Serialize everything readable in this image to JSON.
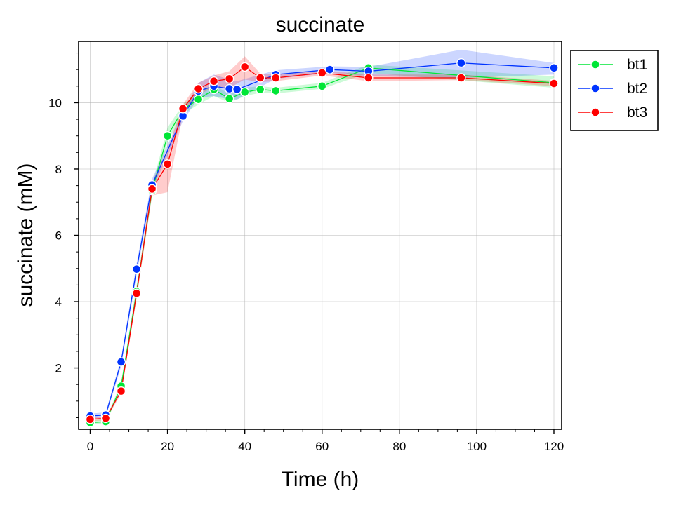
{
  "chart_data": {
    "type": "line",
    "title": "succinate",
    "xlabel": "Time (h)",
    "ylabel": "succinate (mM)",
    "xlim": [
      -3,
      122
    ],
    "ylim": [
      0.15,
      11.85
    ],
    "xticks": [
      0,
      20,
      40,
      60,
      80,
      100,
      120
    ],
    "yticks": [
      2,
      4,
      6,
      8,
      10
    ],
    "xtick_labels": [
      "0",
      "20",
      "40",
      "60",
      "80",
      "100",
      "120"
    ],
    "ytick_labels": [
      "2",
      "4",
      "6",
      "8",
      "10"
    ],
    "grid": true,
    "legend_position": "outside-upper-right",
    "series": [
      {
        "name": "bt1",
        "color": "#00e636",
        "x": [
          0,
          4,
          8,
          12,
          16,
          20,
          24,
          28,
          32,
          36,
          40,
          44,
          48,
          60,
          72,
          120
        ],
        "y": [
          0.35,
          0.38,
          1.45,
          4.3,
          7.35,
          9.0,
          9.8,
          10.1,
          10.4,
          10.12,
          10.32,
          10.4,
          10.36,
          10.5,
          11.05,
          10.6
        ],
        "lower": [
          0.3,
          0.33,
          1.35,
          4.1,
          7.2,
          8.8,
          9.65,
          9.95,
          10.2,
          10.0,
          10.2,
          10.3,
          10.28,
          10.42,
          10.9,
          10.45
        ],
        "upper": [
          0.42,
          0.45,
          1.55,
          4.5,
          7.5,
          9.25,
          9.95,
          10.3,
          10.55,
          10.25,
          10.45,
          10.5,
          10.45,
          10.6,
          11.15,
          10.8
        ]
      },
      {
        "name": "bt2",
        "color": "#0034ff",
        "x": [
          0,
          4,
          8,
          12,
          16,
          24,
          28,
          32,
          36,
          38,
          48,
          62,
          72,
          96,
          120
        ],
        "y": [
          0.55,
          0.58,
          2.18,
          4.98,
          7.52,
          9.6,
          10.35,
          10.5,
          10.42,
          10.4,
          10.85,
          11.0,
          10.95,
          11.2,
          11.05
        ],
        "lower": [
          0.48,
          0.5,
          2.05,
          4.8,
          7.35,
          9.45,
          10.15,
          10.2,
          10.1,
          10.1,
          10.72,
          10.9,
          10.8,
          10.75,
          10.85
        ],
        "upper": [
          0.62,
          0.66,
          2.3,
          5.15,
          7.7,
          9.75,
          10.6,
          10.85,
          10.7,
          10.65,
          10.98,
          11.1,
          11.08,
          11.6,
          11.2
        ]
      },
      {
        "name": "bt3",
        "color": "#ff0000",
        "x": [
          0,
          4,
          8,
          12,
          16,
          20,
          24,
          28,
          32,
          36,
          40,
          44,
          48,
          60,
          72,
          96,
          120
        ],
        "y": [
          0.45,
          0.48,
          1.3,
          4.25,
          7.4,
          8.15,
          9.82,
          10.42,
          10.65,
          10.72,
          11.08,
          10.75,
          10.75,
          10.9,
          10.75,
          10.75,
          10.58
        ],
        "lower": [
          0.4,
          0.42,
          1.22,
          4.1,
          7.2,
          7.3,
          9.65,
          10.25,
          10.45,
          10.45,
          10.7,
          10.62,
          10.65,
          10.82,
          10.65,
          10.68,
          10.5
        ],
        "upper": [
          0.5,
          0.53,
          1.38,
          4.4,
          7.6,
          8.6,
          9.95,
          10.6,
          10.82,
          10.95,
          11.4,
          10.88,
          10.85,
          10.98,
          10.85,
          10.85,
          10.66
        ]
      }
    ]
  }
}
